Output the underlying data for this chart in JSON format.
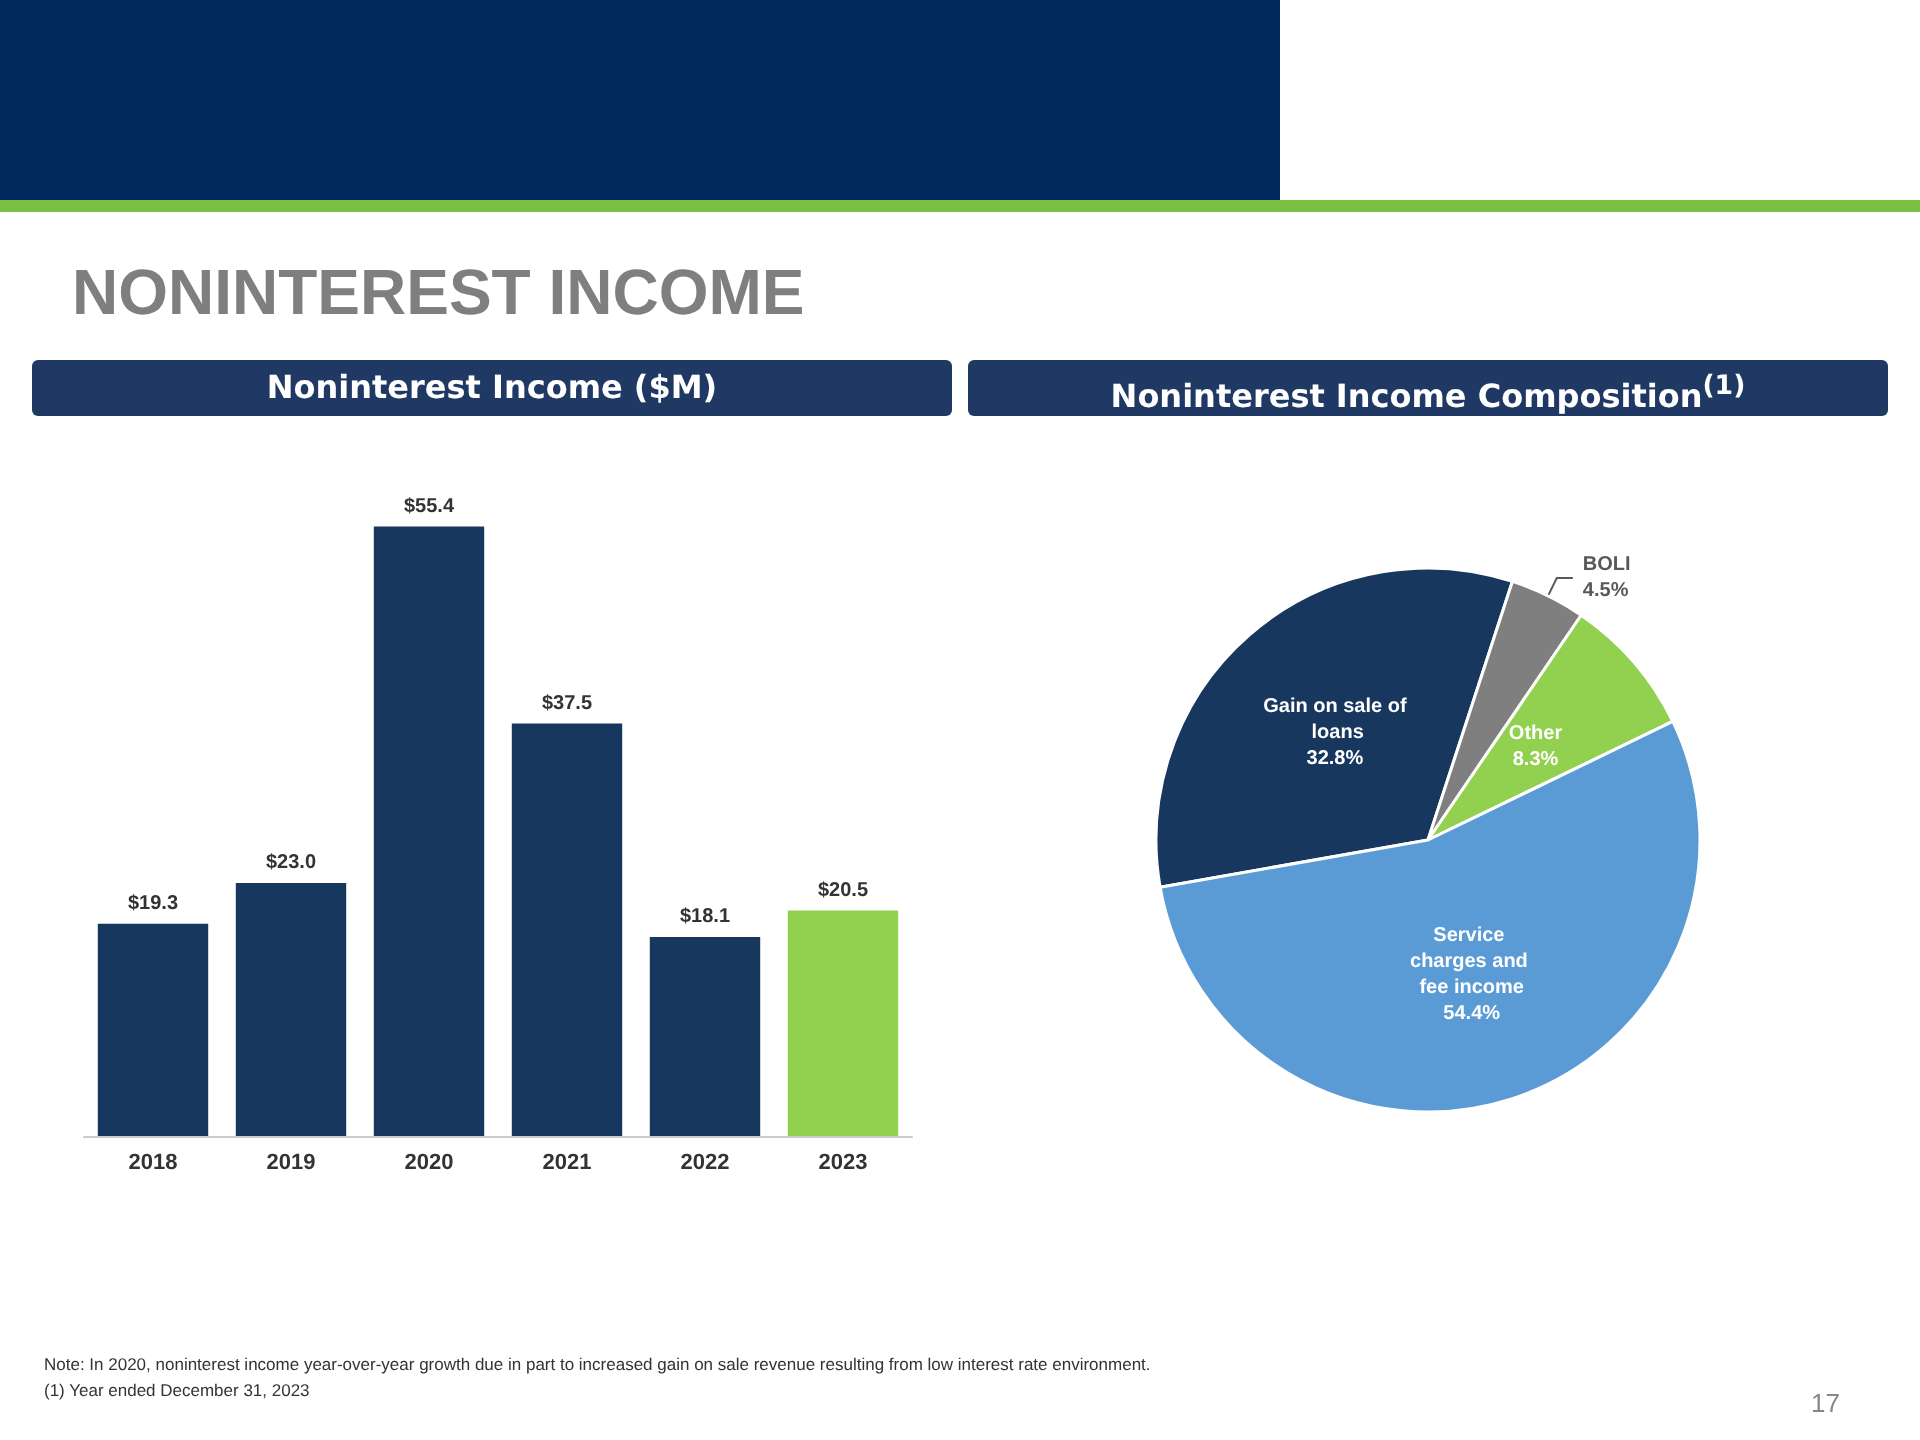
{
  "chart_data": [
    {
      "type": "bar",
      "title": "NONINTEREST INCOME",
      "subtitle": "Noninterest Income ($M)",
      "categories": [
        "2018",
        "2019",
        "2020",
        "2021",
        "2022",
        "2023"
      ],
      "values": [
        19.3,
        23.0,
        55.4,
        37.5,
        18.1,
        20.5
      ],
      "colors": [
        "#17375e",
        "#17375e",
        "#17375e",
        "#17375e",
        "#17375e",
        "#92d050"
      ],
      "value_labels": [
        "$19.3",
        "$23.0",
        "$55.4",
        "$37.5",
        "$18.1",
        "$20.5"
      ],
      "legend": false
    },
    {
      "type": "pie",
      "title": "Noninterest Income Composition$^{(1)}$",
      "categories": [
        "Gain on sale of loans",
        "BOLI",
        "Other",
        "Service charges and fee income"
      ],
      "values": [
        32.8,
        4.5,
        8.3,
        54.4
      ],
      "colors": [
        "#17375e",
        "#7f7f7f",
        "#92d050",
        "#5b9bd5"
      ],
      "value_labels": [
        "32.8%",
        "4.5%",
        "8.3%",
        "54.4%"
      ],
      "legend": false,
      "annotations": [
        "Note:  In 2020, noninterest income year-over-year growth due in part to increased gain on sale revenue resulting from low interest rate environment.",
        "(1) Year ended December 31, 2023",
        "17"
      ]
    }
  ]
}
